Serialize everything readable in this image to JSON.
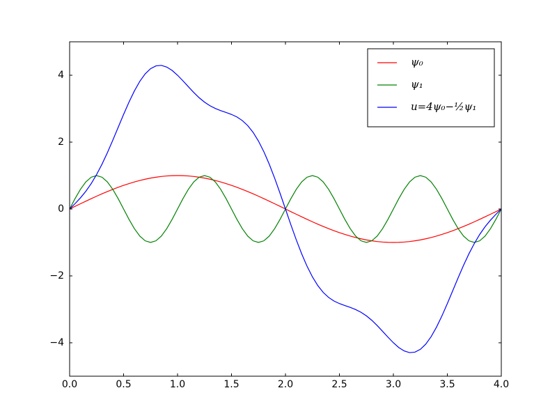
{
  "chart_data": {
    "type": "line",
    "x": [
      0,
      0.05,
      0.1,
      0.15,
      0.2,
      0.25,
      0.3,
      0.35,
      0.4,
      0.45,
      0.5,
      0.55,
      0.6,
      0.65,
      0.7,
      0.75,
      0.8,
      0.85,
      0.9,
      0.95,
      1,
      1.05,
      1.1,
      1.15,
      1.2,
      1.25,
      1.3,
      1.35,
      1.4,
      1.45,
      1.5,
      1.55,
      1.6,
      1.65,
      1.7,
      1.75,
      1.8,
      1.85,
      1.9,
      1.95,
      2,
      2.05,
      2.1,
      2.15,
      2.2,
      2.25,
      2.3,
      2.35,
      2.4,
      2.45,
      2.5,
      2.55,
      2.6,
      2.65,
      2.7,
      2.75,
      2.8,
      2.85,
      2.9,
      2.95,
      3,
      3.05,
      3.1,
      3.15,
      3.2,
      3.25,
      3.3,
      3.35,
      3.4,
      3.45,
      3.5,
      3.55,
      3.6,
      3.65,
      3.7,
      3.75,
      3.8,
      3.85,
      3.9,
      3.95,
      4
    ],
    "series": [
      {
        "name": "ψ₀",
        "color": "#ff0000",
        "values": [
          0,
          0.079,
          0.156,
          0.233,
          0.309,
          0.383,
          0.454,
          0.522,
          0.588,
          0.649,
          0.707,
          0.76,
          0.809,
          0.853,
          0.891,
          0.924,
          0.951,
          0.972,
          0.988,
          0.997,
          1,
          0.997,
          0.988,
          0.972,
          0.951,
          0.924,
          0.891,
          0.853,
          0.809,
          0.76,
          0.707,
          0.649,
          0.588,
          0.522,
          0.454,
          0.383,
          0.309,
          0.233,
          0.156,
          0.079,
          0,
          -0.079,
          -0.156,
          -0.233,
          -0.309,
          -0.383,
          -0.454,
          -0.522,
          -0.588,
          -0.649,
          -0.707,
          -0.76,
          -0.809,
          -0.853,
          -0.891,
          -0.924,
          -0.951,
          -0.972,
          -0.988,
          -0.997,
          -1,
          -0.997,
          -0.988,
          -0.972,
          -0.951,
          -0.924,
          -0.891,
          -0.853,
          -0.809,
          -0.76,
          -0.707,
          -0.649,
          -0.588,
          -0.522,
          -0.454,
          -0.383,
          -0.309,
          -0.233,
          -0.156,
          -0.079,
          0
        ]
      },
      {
        "name": "ψ₁",
        "color": "#008000",
        "values": [
          0,
          0.309,
          0.588,
          0.809,
          0.951,
          1,
          0.951,
          0.809,
          0.588,
          0.309,
          0,
          -0.309,
          -0.588,
          -0.809,
          -0.951,
          -1,
          -0.951,
          -0.809,
          -0.588,
          -0.309,
          0,
          0.309,
          0.588,
          0.809,
          0.951,
          1,
          0.951,
          0.809,
          0.588,
          0.309,
          0,
          -0.309,
          -0.588,
          -0.809,
          -0.951,
          -1,
          -0.951,
          -0.809,
          -0.588,
          -0.309,
          0,
          0.309,
          0.588,
          0.809,
          0.951,
          1,
          0.951,
          0.809,
          0.588,
          0.309,
          0,
          -0.309,
          -0.588,
          -0.809,
          -0.951,
          -1,
          -0.951,
          -0.809,
          -0.588,
          -0.309,
          0,
          0.309,
          0.588,
          0.809,
          0.951,
          1,
          0.951,
          0.809,
          0.588,
          0.309,
          0,
          -0.309,
          -0.588,
          -0.809,
          -0.951,
          -1,
          -0.951,
          -0.809,
          -0.588,
          -0.309,
          0
        ]
      },
      {
        "name": "u=4ψ₀−½ψ₁",
        "color": "#0000ff",
        "values": [
          0,
          0.159,
          0.332,
          0.529,
          0.76,
          1.031,
          1.34,
          1.685,
          2.057,
          2.443,
          2.828,
          3.196,
          3.53,
          3.816,
          4.04,
          4.196,
          4.28,
          4.295,
          4.245,
          4.143,
          4,
          3.833,
          3.657,
          3.485,
          3.328,
          3.196,
          3.088,
          3.006,
          2.942,
          2.886,
          2.828,
          2.753,
          2.645,
          2.495,
          2.292,
          2.031,
          1.712,
          1.339,
          0.92,
          0.469,
          0,
          -0.469,
          -0.92,
          -1.339,
          -1.712,
          -2.031,
          -2.292,
          -2.495,
          -2.645,
          -2.753,
          -2.828,
          -2.886,
          -2.942,
          -3.006,
          -3.088,
          -3.196,
          -3.328,
          -3.485,
          -3.657,
          -3.833,
          -4,
          -4.143,
          -4.245,
          -4.295,
          -4.28,
          -4.196,
          -4.04,
          -3.816,
          -3.53,
          -3.196,
          -2.828,
          -2.443,
          -2.057,
          -1.685,
          -1.34,
          -1.031,
          -0.76,
          -0.529,
          -0.332,
          -0.159,
          0
        ]
      }
    ],
    "xlim": [
      0,
      4
    ],
    "xticks": [
      {
        "value": 0,
        "label": "0.0"
      },
      0.5,
      {
        "value": 1,
        "label": "1.0"
      },
      1.5,
      {
        "value": 2,
        "label": "2.0"
      },
      2.5,
      {
        "value": 3,
        "label": "3.0"
      },
      3.5,
      {
        "value": 4,
        "label": "4.0"
      }
    ],
    "ylim": [
      -5,
      5
    ],
    "yticks": [
      {
        "value": -4,
        "label": "−4"
      },
      {
        "value": -2,
        "label": "−2"
      },
      0,
      2,
      4
    ],
    "grid": false,
    "legend": "upper right"
  }
}
